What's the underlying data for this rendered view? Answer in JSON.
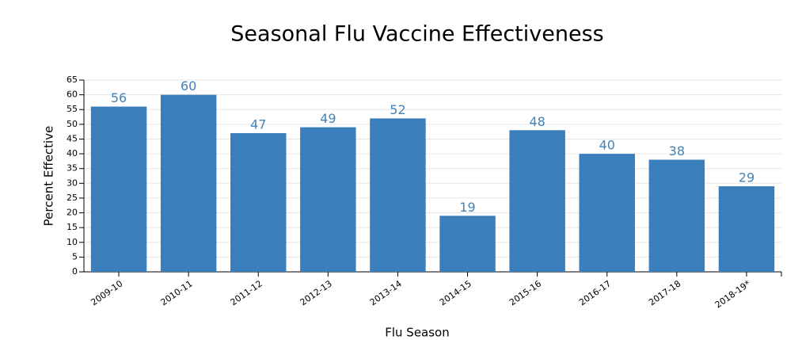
{
  "chart_data": {
    "type": "bar",
    "title": "Seasonal Flu Vaccine Effectiveness",
    "x_label": "Flu Season",
    "y_label": "Percent Effective",
    "categories": [
      "2009-10",
      "2010-11",
      "2011-12",
      "2012-13",
      "2013-14",
      "2014-15",
      "2015-16",
      "2016-17",
      "2017-18",
      "2018-19*"
    ],
    "values": [
      56,
      60,
      47,
      49,
      52,
      19,
      48,
      40,
      38,
      29
    ],
    "color": "#3a7ebb",
    "ylim": [
      0,
      65
    ],
    "yticks": [
      0,
      5,
      10,
      15,
      20,
      25,
      30,
      35,
      40,
      45,
      50,
      55,
      60,
      65
    ],
    "grid": true
  }
}
